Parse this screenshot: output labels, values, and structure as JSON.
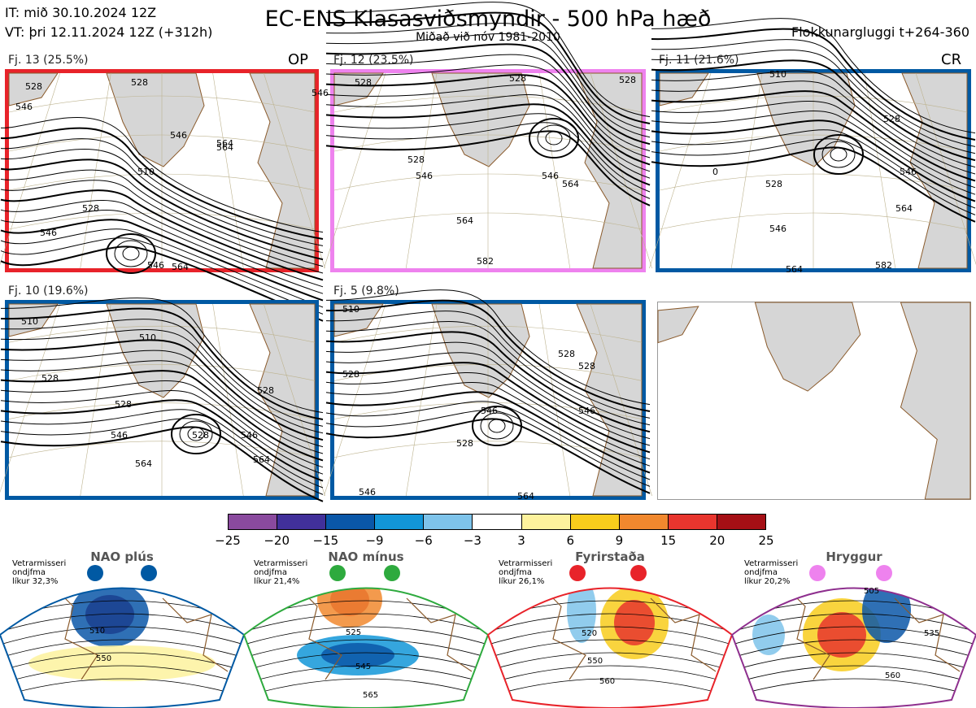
{
  "header": {
    "title": "EC-ENS Klasasviðsmyndir - 500 hPa hæð",
    "subtitle": "Miðað við nóv 1981-2010",
    "init_time": "IT: mið 30.10.2024 12Z",
    "valid_time": "VT: þri 12.11.2024 12Z  (+312h)",
    "window": "Flokkunargluggi t+264-360"
  },
  "clusters": [
    {
      "label": "Fj. 13 (25.5%)",
      "tag": "OP",
      "color": "#e8232a",
      "contour_labels": [
        "528",
        "546",
        "546",
        "546",
        "510",
        "528",
        "564",
        "546",
        "546",
        "564",
        "528",
        "564"
      ]
    },
    {
      "label": "Fj. 12 (23.5%)",
      "tag": "",
      "color": "#ee82ee",
      "contour_labels": [
        "528",
        "528",
        "528",
        "546",
        "564",
        "546",
        "564",
        "528",
        "582"
      ]
    },
    {
      "label": "Fj. 11 (21.6%)",
      "tag": "CR",
      "color": "#0059a3",
      "contour_labels": [
        "510",
        "528",
        "528",
        "546",
        "546",
        "564",
        "564",
        "582",
        "0"
      ]
    },
    {
      "label": "Fj. 10 (19.6%)",
      "tag": "",
      "color": "#0059a3",
      "contour_labels": [
        "510",
        "510",
        "528",
        "528",
        "546",
        "546",
        "564",
        "564",
        "528",
        "528"
      ]
    },
    {
      "label": "Fj. 5 (9.8%)",
      "tag": "",
      "color": "#0059a3",
      "contour_labels": [
        "510",
        "528",
        "528",
        "528",
        "546",
        "546",
        "564",
        "528",
        "546"
      ]
    }
  ],
  "colorbar": {
    "colors": [
      "#8a4a9e",
      "#41309a",
      "#0a57a8",
      "#1296d8",
      "#7ec3ea",
      "#ffffff",
      "#fdf29d",
      "#f8cc1c",
      "#f1882e",
      "#e8352e",
      "#a50f15"
    ],
    "ticks": [
      "−25",
      "−20",
      "−15",
      "−9",
      "−6",
      "−3",
      "3",
      "6",
      "9",
      "15",
      "20",
      "25"
    ]
  },
  "regimes": [
    {
      "name": "NAO plús",
      "note": "Vetrarmisseri\nondjfma\nlíkur 32,3%",
      "color": "#0059a3",
      "dot_color": "#0059a3",
      "contour_labels": [
        "510",
        "550"
      ]
    },
    {
      "name": "NAO mínus",
      "note": "Vetrarmisseri\nondjfma\nlíkur 21,4%",
      "color": "#2eaa3e",
      "dot_color": "#2eaa3e",
      "contour_labels": [
        "525",
        "545",
        "565"
      ]
    },
    {
      "name": "Fyrirstaða",
      "note": "Vetrarmisseri\nondjfma\nlíkur 26,1%",
      "color": "#e8232a",
      "dot_color": "#e8232a",
      "contour_labels": [
        "520",
        "550",
        "560"
      ]
    },
    {
      "name": "Hryggur",
      "note": "Vetrarmisseri\nondjfma\nlíkur 20,2%",
      "color": "#8e2f8e",
      "dot_color": "#ee82ee",
      "contour_labels": [
        "505",
        "535",
        "560"
      ]
    }
  ]
}
